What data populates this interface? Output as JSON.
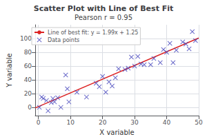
{
  "chart_data": {
    "type": "scatter",
    "title": "Scatter Plot with Line of Best Fit",
    "subtitle": "Pearson r = 0.95",
    "xlabel": "X variable",
    "ylabel": "Y variable",
    "xlim": [
      -1,
      50
    ],
    "ylim": [
      -12,
      120
    ],
    "xticks": [
      0,
      10,
      20,
      30,
      40,
      50
    ],
    "yticks": [
      0,
      20,
      40,
      60,
      80,
      100
    ],
    "grid": true,
    "legend": "upper left",
    "series": [
      {
        "name": "Line of best fit: y = 1.99x + 1.25",
        "type": "line",
        "color": "#dd2222",
        "x": [
          -1,
          50
        ],
        "values": [
          -0.74,
          100.75
        ]
      },
      {
        "name": "Data points",
        "type": "scatter",
        "color": "#4444bb",
        "marker": "x",
        "x": [
          0.3,
          1.0,
          1.5,
          2.5,
          3.0,
          4.0,
          4.5,
          5.0,
          6.0,
          7.0,
          8.5,
          9.0,
          9.5,
          12.0,
          15.0,
          18.0,
          19.0,
          20.0,
          21.0,
          22.0,
          23.0,
          24.0,
          25.0,
          27.0,
          28.0,
          29.0,
          30.0,
          31.0,
          32.0,
          33.0,
          35.0,
          36.0,
          38.0,
          39.0,
          40.0,
          41.0,
          42.0,
          43.0,
          45.0,
          46.0,
          47.0,
          48.0,
          49.0
        ],
        "values": [
          0.0,
          15.0,
          13.0,
          10.0,
          -5.0,
          7.0,
          13.0,
          8.0,
          14.0,
          0.0,
          47.0,
          27.0,
          8.0,
          22.0,
          15.0,
          35.0,
          30.0,
          45.0,
          22.0,
          37.0,
          31.0,
          43.0,
          56.0,
          55.0,
          57.0,
          73.0,
          60.0,
          74.0,
          63.0,
          62.0,
          62.0,
          71.0,
          65.0,
          84.0,
          80.0,
          93.0,
          65.0,
          83.0,
          95.0,
          92.0,
          85.0,
          110.0,
          97.0
        ]
      }
    ]
  }
}
